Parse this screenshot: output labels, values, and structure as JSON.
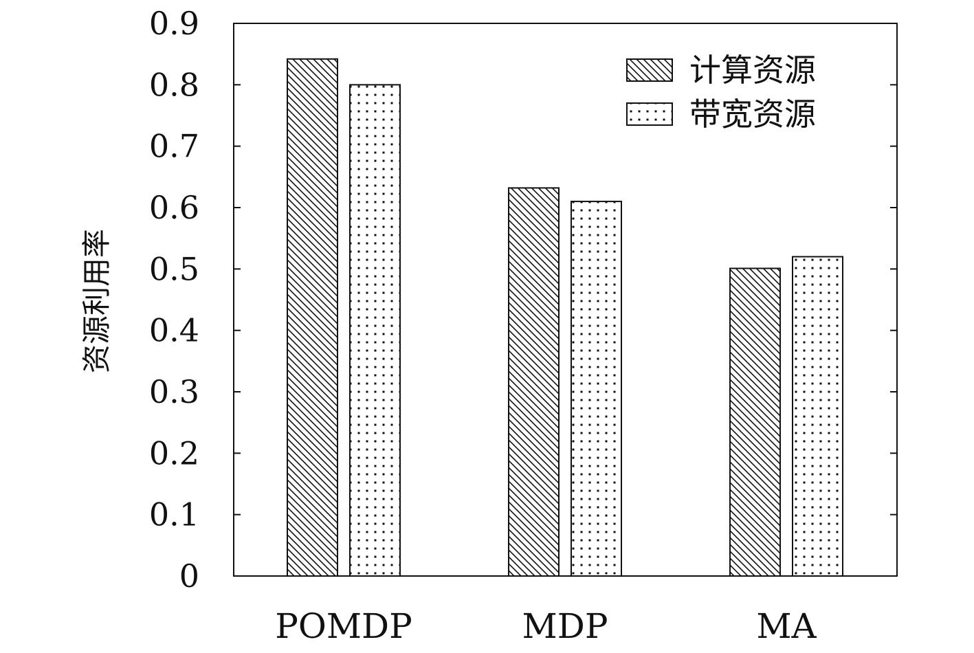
{
  "chart_data": {
    "type": "bar",
    "categories": [
      "POMDP",
      "MDP",
      "MA"
    ],
    "series": [
      {
        "name": "计算资源",
        "values": [
          0.842,
          0.632,
          0.501
        ],
        "pattern": "diagonal-hatch"
      },
      {
        "name": "带宽资源",
        "values": [
          0.8,
          0.61,
          0.52
        ],
        "pattern": "dots"
      }
    ],
    "ylabel": "资源利用率",
    "xlabel": "",
    "title": "",
    "ylim": [
      0,
      0.9
    ],
    "yticks": [
      "0",
      "0.1",
      "0.2",
      "0.3",
      "0.4",
      "0.5",
      "0.6",
      "0.7",
      "0.8",
      "0.9"
    ],
    "grid": false,
    "legend_position": "top-right",
    "colors": {
      "ink": "#111111",
      "background": "#ffffff"
    }
  }
}
